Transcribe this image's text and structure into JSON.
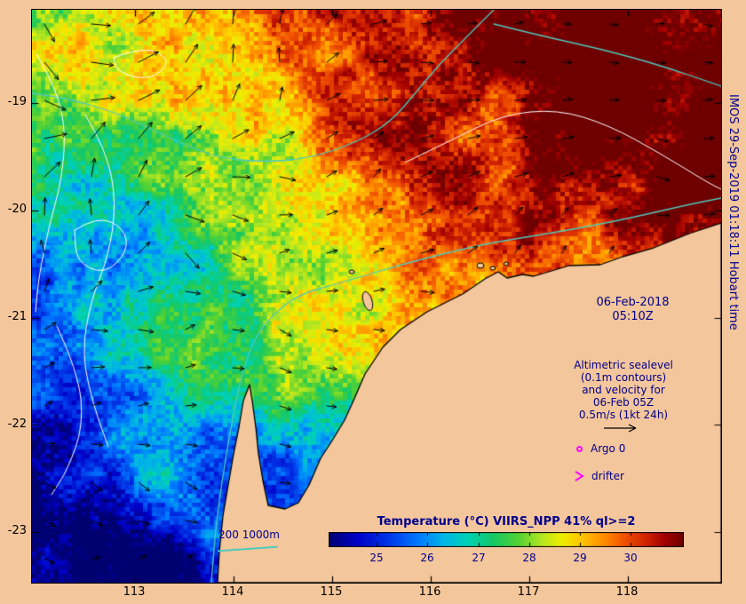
{
  "meta": {
    "credit": "IMOS 29-Sep-2019 01:18:11 Hobart time"
  },
  "colors": {
    "background": "#f3c69b",
    "land": "#f3c69b",
    "coastline": "#000000",
    "annotation_text": "#00008b",
    "axis_text": "#000000",
    "marker": "#ff00ff",
    "bathymetry_line": "#4fc9bd",
    "sea_level_contour": "#ffffff",
    "vector_arrows": "#000000"
  },
  "axes": {
    "x_ticks": [
      "113",
      "114",
      "115",
      "116",
      "117",
      "118"
    ],
    "y_ticks": [
      "-19",
      "-20",
      "-21",
      "-22",
      "-23"
    ]
  },
  "annotations": {
    "date_line1": "06-Feb-2018",
    "date_line2": "05:10Z",
    "altimetry_lines": [
      "Altimetric sealevel",
      "(0.1m contours)",
      "and velocity for",
      "06-Feb 05Z",
      "0.5m/s (1kt 24h)"
    ],
    "argo_label": "Argo 0",
    "drifter_label": "drifter",
    "bathy_legend_label": "200 1000m"
  },
  "chart_data": {
    "type": "heatmap",
    "title": "Temperature (°C) VIIRS_NPP 41% ql>=2",
    "xlabel": "",
    "ylabel": "",
    "x_tick_values": [
      113,
      114,
      115,
      116,
      117,
      118
    ],
    "y_tick_values": [
      -19,
      -20,
      -21,
      -22,
      -23
    ],
    "xlim": [
      111.95,
      118.95
    ],
    "ylim": [
      -23.47,
      -18.13
    ],
    "grid": false,
    "legend_position": "bottom",
    "colorbar": {
      "tick_labels": [
        "25",
        "26",
        "27",
        "28",
        "29",
        "30"
      ],
      "tick_values": [
        25,
        26,
        27,
        28,
        29,
        30
      ],
      "range": [
        24.05,
        31.05
      ],
      "stops": [
        {
          "v": 24.05,
          "c": "#000070"
        },
        {
          "v": 24.6,
          "c": "#0000c8"
        },
        {
          "v": 25.2,
          "c": "#0034e6"
        },
        {
          "v": 25.8,
          "c": "#0078ff"
        },
        {
          "v": 26.3,
          "c": "#00b4e8"
        },
        {
          "v": 26.8,
          "c": "#00d2b4"
        },
        {
          "v": 27.3,
          "c": "#16c864"
        },
        {
          "v": 27.8,
          "c": "#55d233"
        },
        {
          "v": 28.25,
          "c": "#b4e622"
        },
        {
          "v": 28.65,
          "c": "#f0ee00"
        },
        {
          "v": 29.05,
          "c": "#ffc400"
        },
        {
          "v": 29.5,
          "c": "#ff8a00"
        },
        {
          "v": 29.9,
          "c": "#f05000"
        },
        {
          "v": 30.3,
          "c": "#d22500"
        },
        {
          "v": 30.7,
          "c": "#a00000"
        },
        {
          "v": 31.05,
          "c": "#6e0000"
        }
      ]
    },
    "overlays": [
      {
        "name": "altimetric-sealevel-contours",
        "description": "0.1m contours",
        "color": "#ffffff"
      },
      {
        "name": "velocity-vectors",
        "scale": "0.5m/s (1kt 24h)",
        "color": "#000000"
      },
      {
        "name": "bathymetry-contours",
        "depths_m": [
          200,
          1000
        ],
        "color": "#4fc9bd"
      },
      {
        "name": "argo-marker",
        "count_label": "Argo 0",
        "color": "#ff00ff"
      },
      {
        "name": "drifter-marker",
        "label": "drifter",
        "color": "#ff00ff"
      }
    ]
  }
}
